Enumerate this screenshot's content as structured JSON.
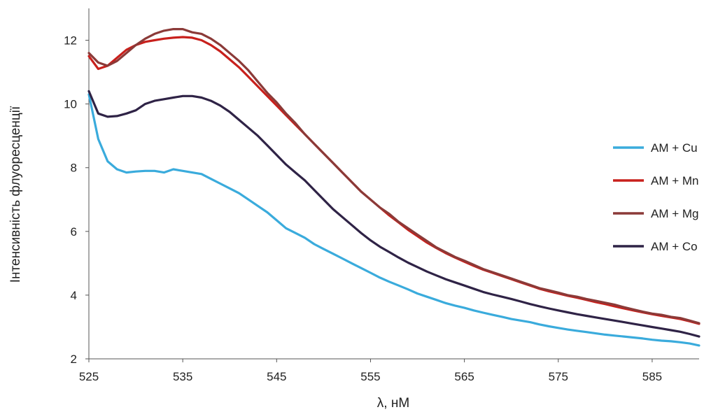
{
  "chart_data": {
    "type": "line",
    "title": "",
    "xlabel": "λ, нМ",
    "ylabel": "Інтенсивність флуоресценції",
    "xlim": [
      525,
      590
    ],
    "ylim": [
      2,
      13
    ],
    "x_ticks": [
      525,
      535,
      545,
      555,
      565,
      575,
      585
    ],
    "y_ticks": [
      2,
      4,
      6,
      8,
      10,
      12
    ],
    "grid": false,
    "legend_position": "right",
    "x": [
      525,
      526,
      527,
      528,
      529,
      530,
      531,
      532,
      533,
      534,
      535,
      536,
      537,
      538,
      539,
      540,
      541,
      542,
      543,
      544,
      545,
      546,
      547,
      548,
      549,
      550,
      551,
      552,
      553,
      554,
      555,
      556,
      557,
      558,
      559,
      560,
      561,
      562,
      563,
      564,
      565,
      566,
      567,
      568,
      569,
      570,
      571,
      572,
      573,
      574,
      575,
      576,
      577,
      578,
      579,
      580,
      581,
      582,
      583,
      584,
      585,
      586,
      587,
      588,
      589,
      590
    ],
    "series": [
      {
        "name": "AM + Cu",
        "color": "#3aabdc",
        "values": [
          10.3,
          8.9,
          8.2,
          7.95,
          7.85,
          7.88,
          7.9,
          7.9,
          7.85,
          7.95,
          7.9,
          7.85,
          7.8,
          7.65,
          7.5,
          7.35,
          7.2,
          7.0,
          6.8,
          6.6,
          6.35,
          6.1,
          5.95,
          5.8,
          5.6,
          5.45,
          5.3,
          5.15,
          5.0,
          4.85,
          4.7,
          4.55,
          4.42,
          4.3,
          4.18,
          4.05,
          3.95,
          3.85,
          3.75,
          3.67,
          3.6,
          3.52,
          3.45,
          3.38,
          3.32,
          3.25,
          3.2,
          3.15,
          3.08,
          3.02,
          2.97,
          2.92,
          2.88,
          2.84,
          2.8,
          2.76,
          2.73,
          2.7,
          2.67,
          2.64,
          2.6,
          2.57,
          2.55,
          2.52,
          2.48,
          2.42
        ]
      },
      {
        "name": "AM + Mn",
        "color": "#c8201c",
        "values": [
          11.5,
          11.1,
          11.2,
          11.45,
          11.7,
          11.85,
          11.95,
          12.0,
          12.05,
          12.08,
          12.1,
          12.08,
          12.0,
          11.85,
          11.65,
          11.4,
          11.15,
          10.85,
          10.55,
          10.25,
          9.95,
          9.65,
          9.35,
          9.05,
          8.75,
          8.45,
          8.15,
          7.85,
          7.55,
          7.25,
          7.0,
          6.75,
          6.5,
          6.28,
          6.05,
          5.85,
          5.65,
          5.48,
          5.32,
          5.18,
          5.05,
          4.92,
          4.8,
          4.7,
          4.6,
          4.5,
          4.4,
          4.3,
          4.2,
          4.12,
          4.05,
          3.98,
          3.92,
          3.85,
          3.78,
          3.72,
          3.65,
          3.58,
          3.52,
          3.46,
          3.4,
          3.35,
          3.3,
          3.25,
          3.18,
          3.1
        ]
      },
      {
        "name": "AM + Mg",
        "color": "#8b3a38",
        "values": [
          11.6,
          11.3,
          11.2,
          11.35,
          11.6,
          11.85,
          12.05,
          12.2,
          12.3,
          12.35,
          12.35,
          12.25,
          12.2,
          12.05,
          11.85,
          11.6,
          11.35,
          11.05,
          10.7,
          10.35,
          10.05,
          9.7,
          9.4,
          9.05,
          8.75,
          8.45,
          8.15,
          7.85,
          7.55,
          7.25,
          7.0,
          6.75,
          6.55,
          6.3,
          6.1,
          5.9,
          5.7,
          5.5,
          5.35,
          5.2,
          5.08,
          4.95,
          4.82,
          4.72,
          4.62,
          4.52,
          4.42,
          4.32,
          4.22,
          4.15,
          4.08,
          4.0,
          3.95,
          3.88,
          3.82,
          3.76,
          3.7,
          3.62,
          3.55,
          3.48,
          3.42,
          3.38,
          3.32,
          3.28,
          3.2,
          3.12
        ]
      },
      {
        "name": "AM + Co",
        "color": "#2f2346",
        "values": [
          10.4,
          9.7,
          9.6,
          9.62,
          9.7,
          9.8,
          10.0,
          10.1,
          10.15,
          10.2,
          10.25,
          10.25,
          10.2,
          10.1,
          9.95,
          9.75,
          9.5,
          9.25,
          9.0,
          8.7,
          8.4,
          8.1,
          7.85,
          7.6,
          7.3,
          7.0,
          6.7,
          6.45,
          6.2,
          5.95,
          5.72,
          5.52,
          5.35,
          5.18,
          5.02,
          4.88,
          4.74,
          4.62,
          4.5,
          4.4,
          4.3,
          4.2,
          4.1,
          4.02,
          3.95,
          3.88,
          3.8,
          3.72,
          3.65,
          3.58,
          3.52,
          3.46,
          3.4,
          3.35,
          3.3,
          3.25,
          3.2,
          3.15,
          3.1,
          3.05,
          3.0,
          2.95,
          2.9,
          2.85,
          2.78,
          2.7
        ]
      }
    ]
  }
}
